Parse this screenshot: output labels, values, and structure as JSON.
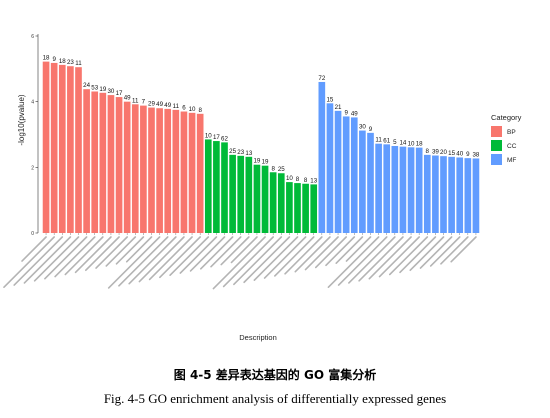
{
  "chart_data": {
    "type": "bar",
    "xlabel": "Description",
    "ylabel": "-log10(pvalue)",
    "ylim": [
      0,
      6
    ],
    "yticks": [
      "0",
      "2",
      "4",
      "6"
    ],
    "grid": false,
    "legend": {
      "title": "Category",
      "placement": "right",
      "entries": [
        {
          "name": "BP",
          "color": "#F8766D"
        },
        {
          "name": "CC",
          "color": "#00BA38"
        },
        {
          "name": "MF",
          "color": "#619CFF"
        }
      ]
    },
    "bars": [
      {
        "category": "BP",
        "value": 5.22,
        "label": "18"
      },
      {
        "category": "BP",
        "value": 5.18,
        "label": "9"
      },
      {
        "category": "BP",
        "value": 5.12,
        "label": "18"
      },
      {
        "category": "BP",
        "value": 5.08,
        "label": "23"
      },
      {
        "category": "BP",
        "value": 5.05,
        "label": "11"
      },
      {
        "category": "BP",
        "value": 4.38,
        "label": "24"
      },
      {
        "category": "BP",
        "value": 4.31,
        "label": "53"
      },
      {
        "category": "BP",
        "value": 4.27,
        "label": "19"
      },
      {
        "category": "BP",
        "value": 4.2,
        "label": "30"
      },
      {
        "category": "BP",
        "value": 4.14,
        "label": "17"
      },
      {
        "category": "BP",
        "value": 4.0,
        "label": "49"
      },
      {
        "category": "BP",
        "value": 3.92,
        "label": "11"
      },
      {
        "category": "BP",
        "value": 3.88,
        "label": "7"
      },
      {
        "category": "BP",
        "value": 3.82,
        "label": "29"
      },
      {
        "category": "BP",
        "value": 3.8,
        "label": "49"
      },
      {
        "category": "BP",
        "value": 3.78,
        "label": "49"
      },
      {
        "category": "BP",
        "value": 3.75,
        "label": "11"
      },
      {
        "category": "BP",
        "value": 3.7,
        "label": "6"
      },
      {
        "category": "BP",
        "value": 3.66,
        "label": "10"
      },
      {
        "category": "BP",
        "value": 3.63,
        "label": "8"
      },
      {
        "category": "CC",
        "value": 2.85,
        "label": "10"
      },
      {
        "category": "CC",
        "value": 2.8,
        "label": "17"
      },
      {
        "category": "CC",
        "value": 2.76,
        "label": "62"
      },
      {
        "category": "CC",
        "value": 2.38,
        "label": "25"
      },
      {
        "category": "CC",
        "value": 2.35,
        "label": "23"
      },
      {
        "category": "CC",
        "value": 2.32,
        "label": "13"
      },
      {
        "category": "CC",
        "value": 2.08,
        "label": "19"
      },
      {
        "category": "CC",
        "value": 2.05,
        "label": "19"
      },
      {
        "category": "CC",
        "value": 1.85,
        "label": "8"
      },
      {
        "category": "CC",
        "value": 1.82,
        "label": "25"
      },
      {
        "category": "CC",
        "value": 1.55,
        "label": "10"
      },
      {
        "category": "CC",
        "value": 1.52,
        "label": "8"
      },
      {
        "category": "CC",
        "value": 1.5,
        "label": "8"
      },
      {
        "category": "CC",
        "value": 1.48,
        "label": "13"
      },
      {
        "category": "MF",
        "value": 4.6,
        "label": "72"
      },
      {
        "category": "MF",
        "value": 3.95,
        "label": "15"
      },
      {
        "category": "MF",
        "value": 3.72,
        "label": "21"
      },
      {
        "category": "MF",
        "value": 3.55,
        "label": "9"
      },
      {
        "category": "MF",
        "value": 3.52,
        "label": "49"
      },
      {
        "category": "MF",
        "value": 3.12,
        "label": "30"
      },
      {
        "category": "MF",
        "value": 3.05,
        "label": "9"
      },
      {
        "category": "MF",
        "value": 2.72,
        "label": "11"
      },
      {
        "category": "MF",
        "value": 2.7,
        "label": "61"
      },
      {
        "category": "MF",
        "value": 2.65,
        "label": "5"
      },
      {
        "category": "MF",
        "value": 2.63,
        "label": "14"
      },
      {
        "category": "MF",
        "value": 2.61,
        "label": "10"
      },
      {
        "category": "MF",
        "value": 2.6,
        "label": "18"
      },
      {
        "category": "MF",
        "value": 2.38,
        "label": "8"
      },
      {
        "category": "MF",
        "value": 2.36,
        "label": "39"
      },
      {
        "category": "MF",
        "value": 2.34,
        "label": "20"
      },
      {
        "category": "MF",
        "value": 2.32,
        "label": "15"
      },
      {
        "category": "MF",
        "value": 2.3,
        "label": "40"
      },
      {
        "category": "MF",
        "value": 2.28,
        "label": "9"
      },
      {
        "category": "MF",
        "value": 2.27,
        "label": "38"
      }
    ]
  },
  "caption": {
    "chinese": "图 4-5    差异表达基因的 GO 富集分析",
    "english": "Fig. 4-5    GO enrichment analysis of differentially expressed genes"
  }
}
